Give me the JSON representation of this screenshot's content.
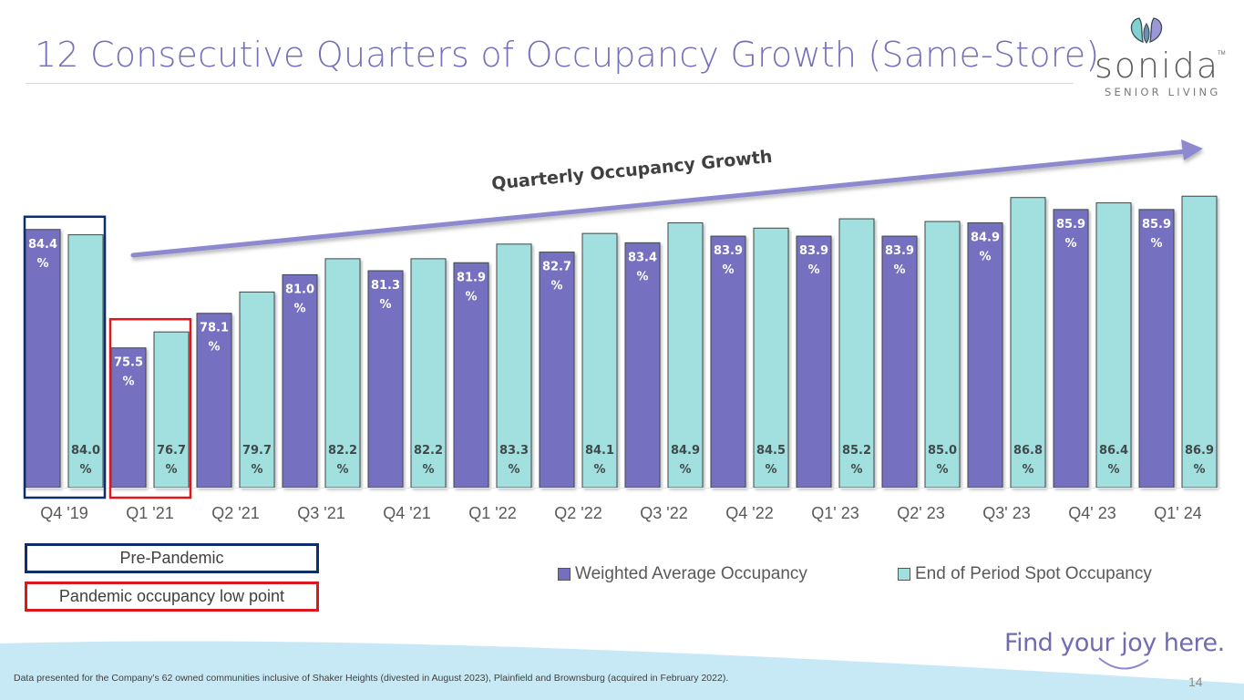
{
  "slide": {
    "title": "12 Consecutive Quarters of Occupancy Growth (Same-Store)",
    "logo": {
      "wordmark": "sonida",
      "trademark": "TM",
      "subtitle": "SENIOR LIVING"
    },
    "callouts": [
      {
        "label": "Pre-Pandemic",
        "color": "#0d2d6b"
      },
      {
        "label": "Pandemic occupancy low point",
        "color": "#e0161c"
      }
    ],
    "footnote": "Data presented for the Company’s 62 owned communities inclusive of Shaker Heights (divested in August 2023), Plainfield and Brownsburg (acquired in February 2022).",
    "tagline": "Find your joy here.",
    "page_number": "14"
  },
  "colors": {
    "title": "#7470bb",
    "weighted": "#7470bf",
    "spot": "#a2dfdf",
    "arrow": "#8d89cf",
    "footer_wave": "#c7e9f5"
  },
  "chart_data": {
    "type": "bar",
    "title": "",
    "annotation": "Quarterly Occupancy Growth",
    "xlabel": "",
    "ylabel": "",
    "ylim": [
      65,
      88
    ],
    "grid": false,
    "legend_position": "bottom-right",
    "value_suffix": "%",
    "categories": [
      "Q4 '19",
      "Q1 '21",
      "Q2 '21",
      "Q3 '21",
      "Q4 '21",
      "Q1 '22",
      "Q2 '22",
      "Q3 '22",
      "Q4 '22",
      "Q1' 23",
      "Q2' 23",
      "Q3' 23",
      "Q4' 23",
      "Q1' 24"
    ],
    "series": [
      {
        "name": "Weighted Average Occupancy",
        "color": "#7470bf",
        "label_color": "#ffffff",
        "label_position": "inside-top",
        "values": [
          84.4,
          75.5,
          78.1,
          81.0,
          81.3,
          81.9,
          82.7,
          83.4,
          83.9,
          83.9,
          83.9,
          84.9,
          85.9,
          85.9
        ]
      },
      {
        "name": "End of Period Spot Occupancy",
        "color": "#a2dfdf",
        "label_color": "#404a4a",
        "label_position": "inside-bottom",
        "values": [
          84.0,
          76.7,
          79.7,
          82.2,
          82.2,
          83.3,
          84.1,
          84.9,
          84.5,
          85.2,
          85.0,
          86.8,
          86.4,
          86.9
        ]
      }
    ],
    "highlights": [
      {
        "category": "Q4 '19",
        "color": "#0d2d6b",
        "meaning": "Pre-Pandemic"
      },
      {
        "category": "Q1 '21",
        "color": "#e0161c",
        "meaning": "Pandemic occupancy low point"
      }
    ]
  }
}
